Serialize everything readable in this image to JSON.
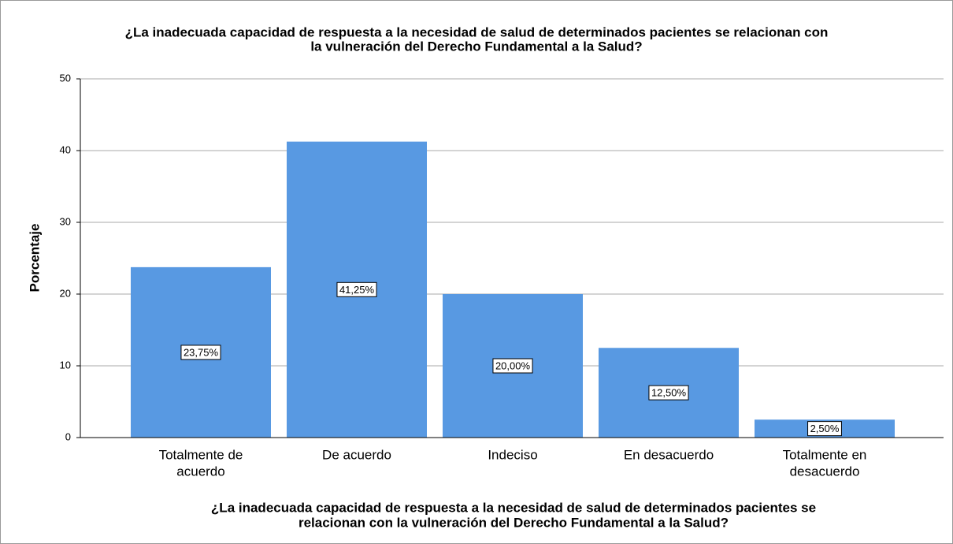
{
  "chart_data": {
    "type": "bar",
    "title": [
      "¿La inadecuada capacidad de respuesta a la necesidad de salud de determinados pacientes se relacionan con",
      "la vulneración del Derecho Fundamental a la Salud?"
    ],
    "x_label": [
      "¿La inadecuada capacidad de respuesta a la necesidad de salud de determinados pacientes se",
      "relacionan con la vulneración del Derecho Fundamental a la Salud?"
    ],
    "y_label": "Porcentaje",
    "categories": [
      [
        "Totalmente de",
        "acuerdo"
      ],
      [
        "De acuerdo"
      ],
      [
        "Indeciso"
      ],
      [
        "En desacuerdo"
      ],
      [
        "Totalmente en",
        "desacuerdo"
      ]
    ],
    "values": [
      23.75,
      41.25,
      20,
      12.5,
      2.5
    ],
    "value_labels": [
      "23,75%",
      "41,25%",
      "20,00%",
      "12,50%",
      "2,50%"
    ],
    "color": "#5899e2",
    "ylim": [
      0,
      50
    ],
    "yticks": [
      0,
      10,
      20,
      30,
      40,
      50
    ],
    "grid": true
  }
}
